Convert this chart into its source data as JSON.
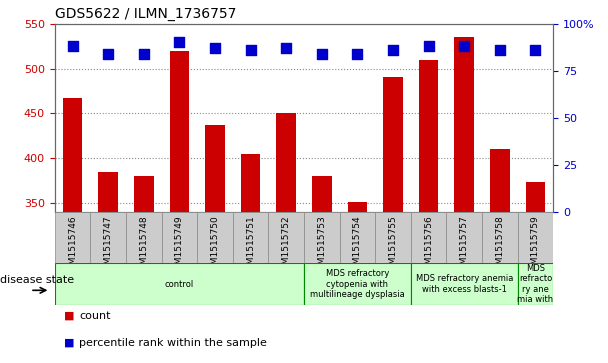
{
  "title": "GDS5622 / ILMN_1736757",
  "samples": [
    "GSM1515746",
    "GSM1515747",
    "GSM1515748",
    "GSM1515749",
    "GSM1515750",
    "GSM1515751",
    "GSM1515752",
    "GSM1515753",
    "GSM1515754",
    "GSM1515755",
    "GSM1515756",
    "GSM1515757",
    "GSM1515758",
    "GSM1515759"
  ],
  "counts": [
    467,
    385,
    381,
    519,
    437,
    405,
    450,
    381,
    352,
    491,
    509,
    535,
    410,
    374
  ],
  "percentile_ranks": [
    88,
    84,
    84,
    90,
    87,
    86,
    87,
    84,
    84,
    86,
    88,
    88,
    86,
    86
  ],
  "ylim_left": [
    340,
    550
  ],
  "ylim_right": [
    0,
    100
  ],
  "yticks_left": [
    350,
    400,
    450,
    500,
    550
  ],
  "yticks_right": [
    0,
    25,
    50,
    75,
    100
  ],
  "bar_color": "#cc0000",
  "dot_color": "#0000cc",
  "grid_color": "#888888",
  "axis_color_left": "#cc0000",
  "axis_color_right": "#0000cc",
  "disease_groups": [
    {
      "label": "control",
      "start": 0,
      "end": 7
    },
    {
      "label": "MDS refractory\ncytopenia with\nmultilineage dysplasia",
      "start": 7,
      "end": 10
    },
    {
      "label": "MDS refractory anemia\nwith excess blasts-1",
      "start": 10,
      "end": 13
    },
    {
      "label": "MDS\nrefracto\nry ane\nmia with",
      "start": 13,
      "end": 14
    }
  ],
  "disease_box_color": "#ccffcc",
  "disease_box_edge": "#008800",
  "sample_bg_color": "#cccccc",
  "sample_border_color": "#888888",
  "legend_items": [
    {
      "label": "count",
      "color": "#cc0000"
    },
    {
      "label": "percentile rank within the sample",
      "color": "#0000cc"
    }
  ],
  "disease_state_label": "disease state",
  "bar_width": 0.55,
  "dot_size": 50,
  "figsize": [
    6.08,
    3.63
  ],
  "dpi": 100
}
